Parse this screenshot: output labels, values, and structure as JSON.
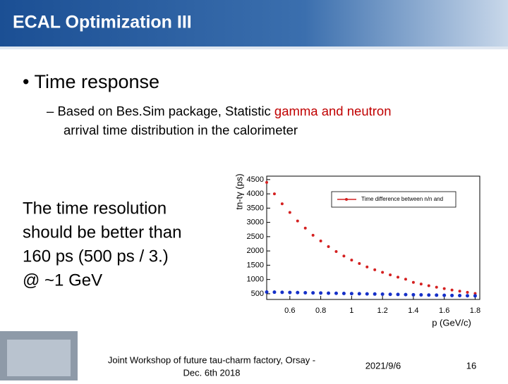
{
  "header": {
    "title": "ECAL Optimization III"
  },
  "bullet": "Time response",
  "sub_bullet": {
    "before": "Based on Bes.Sim package, Statistic ",
    "highlight": "gamma and neutron",
    "after": "arrival time distribution in the calorimeter"
  },
  "side_text": [
    "The time resolution",
    "should be better than",
    "160 ps (500 ps / 3.)",
    "@ ~1 GeV"
  ],
  "chart_data": {
    "type": "scatter",
    "x_label": "p (GeV/c)",
    "y_label": "tn-tγ (ps)",
    "x": [
      0.45,
      0.5,
      0.55,
      0.6,
      0.65,
      0.7,
      0.75,
      0.8,
      0.85,
      0.9,
      0.95,
      1.0,
      1.05,
      1.1,
      1.15,
      1.2,
      1.25,
      1.3,
      1.35,
      1.4,
      1.45,
      1.5,
      1.55,
      1.6,
      1.65,
      1.7,
      1.75,
      1.8
    ],
    "series": [
      {
        "name": "Time difference between n/n and",
        "color": "#d42020",
        "values": [
          4400,
          4000,
          3650,
          3350,
          3050,
          2800,
          2550,
          2350,
          2150,
          1980,
          1820,
          1680,
          1560,
          1440,
          1340,
          1250,
          1160,
          1080,
          1010,
          900,
          840,
          780,
          730,
          680,
          630,
          590,
          550,
          510
        ]
      },
      {
        "color": "#1530c8",
        "values": [
          560,
          555,
          550,
          545,
          540,
          535,
          530,
          525,
          520,
          515,
          510,
          505,
          500,
          495,
          490,
          485,
          480,
          475,
          470,
          465,
          460,
          455,
          450,
          445,
          440,
          435,
          430,
          425
        ]
      }
    ],
    "xlim": [
      0.45,
      1.83
    ],
    "ylim": [
      300,
      4620
    ],
    "xticks": [
      0.6,
      0.8,
      1.0,
      1.2,
      1.4,
      1.6,
      1.8
    ],
    "yticks": [
      500,
      1000,
      1500,
      2000,
      2500,
      3000,
      3500,
      4000,
      4500
    ],
    "grid": false
  },
  "footer": {
    "event": [
      "Joint Workshop of future tau-charm factory, Orsay -",
      "Dec. 6th 2018"
    ],
    "date": "2021/9/6",
    "page": "16"
  }
}
